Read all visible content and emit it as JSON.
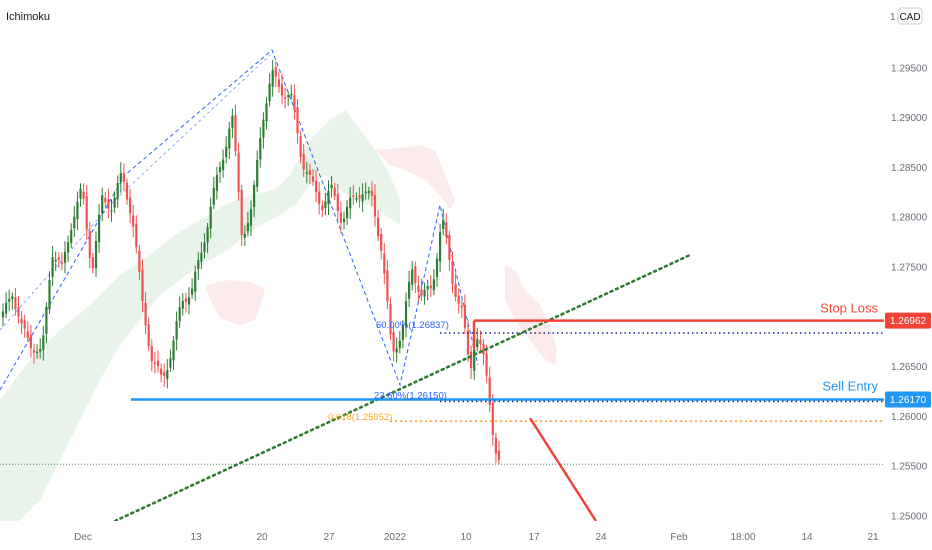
{
  "indicator_label": "Ichimoku",
  "currency_badge": "CAD",
  "currency_prefix": "1",
  "chart_data": {
    "type": "candlestick",
    "title": "",
    "indicator": "Ichimoku",
    "currency": "CAD",
    "y_ticks": [
      1.25,
      1.255,
      1.26,
      1.265,
      1.27,
      1.275,
      1.28,
      1.285,
      1.29,
      1.295
    ],
    "y_tick_labels": [
      "1.25000",
      "1.25500",
      "1.26000",
      "1.26500",
      "1.27000",
      "1.27500",
      "1.28000",
      "1.28500",
      "1.29000",
      "1.29500"
    ],
    "ylim": [
      1.2485,
      1.3
    ],
    "x_tick_labels": [
      "Dec",
      "13",
      "20",
      "27",
      "2022",
      "10",
      "17",
      "24",
      "Feb",
      "18:00",
      "14",
      "21"
    ],
    "levels": [
      {
        "name": "Stop Loss",
        "value": 1.26962,
        "value_label": "1.26962",
        "color": "#f44336",
        "style": "solid"
      },
      {
        "name": "Sell Entry",
        "value": 1.2617,
        "value_label": "1.26170",
        "color": "#2196f3",
        "style": "solid"
      }
    ],
    "fib_labels": [
      {
        "text": "50.00%(1.26837)",
        "value": 1.26837,
        "color": "#2962ff"
      },
      {
        "text": "23.60%(1.26150)",
        "value": 1.2615,
        "color": "#2962ff"
      },
      {
        "text": "0.618(1.25952)",
        "value": 1.25952,
        "color": "#f9a825"
      }
    ],
    "current_price": 1.2552,
    "grid": false,
    "colors": {
      "up": "#26a69a",
      "up_body": "#2e7d32",
      "down": "#ef5350",
      "trend_line": "#2e7d32"
    }
  }
}
